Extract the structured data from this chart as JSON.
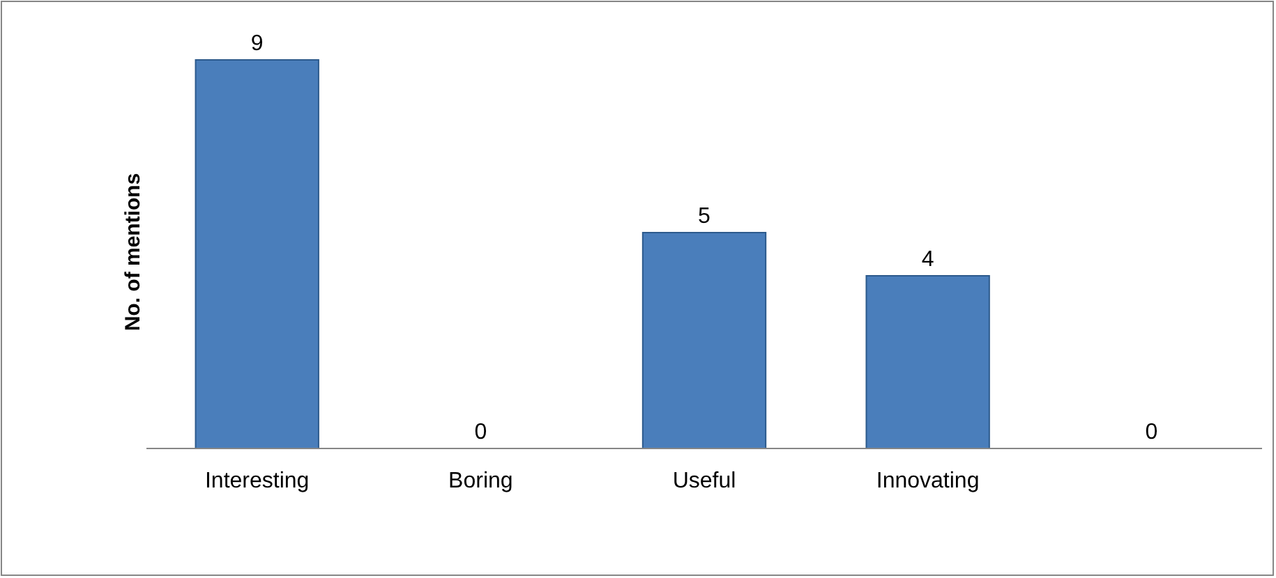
{
  "chart_data": {
    "type": "bar",
    "ylabel": "No. of mentions",
    "categories": [
      "Interesting",
      "Boring",
      "Useful",
      "Innovating",
      null
    ],
    "values": [
      9,
      0,
      5,
      4,
      0
    ],
    "color": "#4a7ebb",
    "data_labels": true
  }
}
